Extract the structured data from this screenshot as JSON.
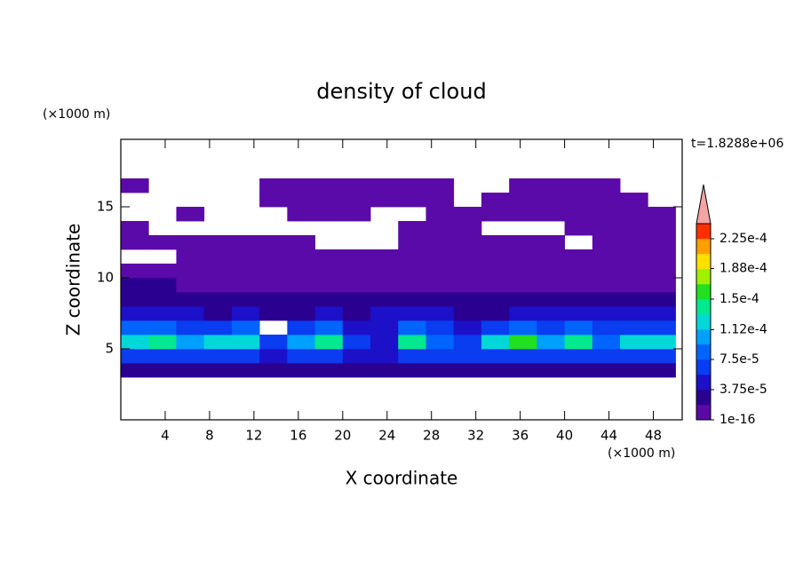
{
  "chart_data": {
    "type": "contour",
    "title": "density of cloud",
    "xlabel": "X coordinate",
    "ylabel": "Z coordinate",
    "xunit": "(×1000 m)",
    "yunit": "(×1000 m)",
    "annotation": "t=1.8288e+06",
    "xlim": [
      0,
      50.6
    ],
    "ylim": [
      0,
      19.75
    ],
    "xticks": [
      4,
      8,
      12,
      16,
      20,
      24,
      28,
      32,
      36,
      40,
      44,
      48
    ],
    "yticks": [
      5,
      10,
      15
    ],
    "xbins": [
      0,
      2.5,
      5,
      7.5,
      10,
      12.5,
      15,
      17.5,
      20,
      22.5,
      25,
      27.5,
      30,
      32.5,
      35,
      37.5,
      40,
      42.5,
      45,
      47.5,
      50
    ],
    "ybins": [
      3,
      4,
      5,
      6,
      7,
      8,
      9,
      10,
      11,
      12,
      13,
      14,
      15,
      16,
      17,
      18
    ],
    "z": [
      [
        3e-05,
        3e-05,
        3e-05,
        3e-05,
        3e-05,
        3e-05,
        3e-05,
        3e-05,
        3e-05,
        3e-05,
        3e-05,
        3e-05,
        3e-05,
        3e-05,
        3e-05,
        3e-05,
        3e-05,
        3e-05,
        3e-05,
        3e-05
      ],
      [
        6e-05,
        6e-05,
        6e-05,
        6e-05,
        6e-05,
        4e-05,
        6e-05,
        6e-05,
        4e-05,
        4e-05,
        6e-05,
        6e-05,
        6e-05,
        6e-05,
        6e-05,
        6e-05,
        6e-05,
        6e-05,
        6e-05,
        6e-05
      ],
      [
        0.00012,
        0.00014,
        0.0001,
        0.00012,
        0.00013,
        6e-05,
        0.00011,
        0.00015,
        6e-05,
        4e-05,
        0.00014,
        9e-05,
        7e-05,
        0.00013,
        0.00016,
        0.00011,
        0.00014,
        9e-05,
        0.00012,
        0.00013
      ],
      [
        8e-05,
        9e-05,
        6e-05,
        7e-05,
        9e-05,
        null,
        6e-05,
        8e-05,
        4e-05,
        5e-05,
        8e-05,
        6e-05,
        5e-05,
        7e-05,
        9e-05,
        7e-05,
        8e-05,
        6e-05,
        7e-05,
        6e-05
      ],
      [
        4e-05,
        5e-05,
        4e-05,
        3e-05,
        4e-05,
        3e-05,
        3e-05,
        4e-05,
        3e-05,
        4e-05,
        5e-05,
        4e-05,
        3e-05,
        3e-05,
        4e-05,
        4e-05,
        5e-05,
        4e-05,
        4e-05,
        5e-05
      ],
      [
        3e-05,
        3e-05,
        2.5e-05,
        2e-05,
        2e-05,
        2e-05,
        2e-05,
        2e-05,
        2e-05,
        2e-05,
        2e-05,
        2e-05,
        2e-05,
        2e-05,
        2e-05,
        2e-05,
        2e-05,
        2e-05,
        2.5e-05,
        3e-05
      ],
      [
        2e-05,
        2e-05,
        1e-05,
        1e-05,
        1e-05,
        1e-05,
        1e-05,
        1e-05,
        1e-05,
        1e-05,
        1e-05,
        1e-05,
        1e-05,
        1e-05,
        1e-05,
        1e-05,
        1e-05,
        1e-05,
        1e-05,
        1e-05
      ],
      [
        1e-05,
        1e-05,
        1e-05,
        1e-05,
        1e-05,
        1e-05,
        1e-05,
        1e-05,
        1e-05,
        1e-05,
        1e-05,
        1e-05,
        1e-05,
        1e-05,
        1e-05,
        1e-05,
        1e-05,
        1e-05,
        1e-05,
        1e-05
      ],
      [
        null,
        null,
        1e-05,
        1e-05,
        1e-05,
        1e-05,
        1e-05,
        1e-05,
        1e-05,
        1e-05,
        1e-05,
        1e-05,
        1e-05,
        1e-05,
        1e-05,
        1e-05,
        1e-05,
        1e-05,
        1e-05,
        1e-05
      ],
      [
        1e-05,
        1e-05,
        1e-05,
        1e-05,
        1e-05,
        1e-05,
        1e-05,
        null,
        null,
        null,
        1e-05,
        1e-05,
        1e-05,
        1e-05,
        1e-05,
        1e-05,
        null,
        1e-05,
        1e-05,
        1e-05
      ],
      [
        1e-05,
        null,
        null,
        null,
        null,
        null,
        null,
        null,
        null,
        null,
        1e-05,
        1e-05,
        1e-05,
        null,
        null,
        null,
        1e-05,
        1e-05,
        1e-05,
        1e-05
      ],
      [
        null,
        null,
        1e-05,
        null,
        null,
        null,
        1e-05,
        1e-05,
        1e-05,
        null,
        null,
        1e-05,
        1e-05,
        1e-05,
        1e-05,
        1e-05,
        1e-05,
        1e-05,
        1e-05,
        1e-05
      ],
      [
        null,
        null,
        null,
        null,
        null,
        1e-05,
        1e-05,
        1e-05,
        1e-05,
        1e-05,
        1e-05,
        1e-05,
        null,
        1e-05,
        1e-05,
        1e-05,
        1e-05,
        1e-05,
        1e-05,
        null
      ],
      [
        1e-05,
        null,
        null,
        null,
        null,
        1e-05,
        1e-05,
        1e-05,
        1e-05,
        1e-05,
        1e-05,
        1e-05,
        null,
        null,
        1e-05,
        1e-05,
        1e-05,
        1e-05,
        null,
        null
      ],
      [
        null,
        null,
        null,
        null,
        null,
        null,
        null,
        null,
        null,
        null,
        null,
        null,
        null,
        null,
        null,
        null,
        null,
        null,
        null,
        null
      ]
    ],
    "colorbar": {
      "clim": [
        0,
        0.00024375
      ],
      "colors": [
        "#5a0aa8",
        "#2a0090",
        "#1c10c8",
        "#0a3cf0",
        "#0064ff",
        "#00a0ff",
        "#00d8d8",
        "#00e890",
        "#20e020",
        "#a0f000",
        "#ffe000",
        "#ffa000",
        "#ff3000"
      ],
      "extend_color": "#f4a4a4",
      "ticks": [
        1e-16,
        {
          "value": 3.75e-05,
          "label": "3.75e-5"
        },
        {
          "value": 7.5e-05,
          "label": "7.5e-5"
        },
        {
          "value": 0.000112,
          "label": "1.12e-4"
        },
        {
          "value": 0.00015,
          "label": "1.5e-4"
        },
        {
          "value": 0.000188,
          "label": "1.88e-4"
        },
        {
          "value": 0.000225,
          "label": "2.25e-4"
        }
      ]
    }
  }
}
